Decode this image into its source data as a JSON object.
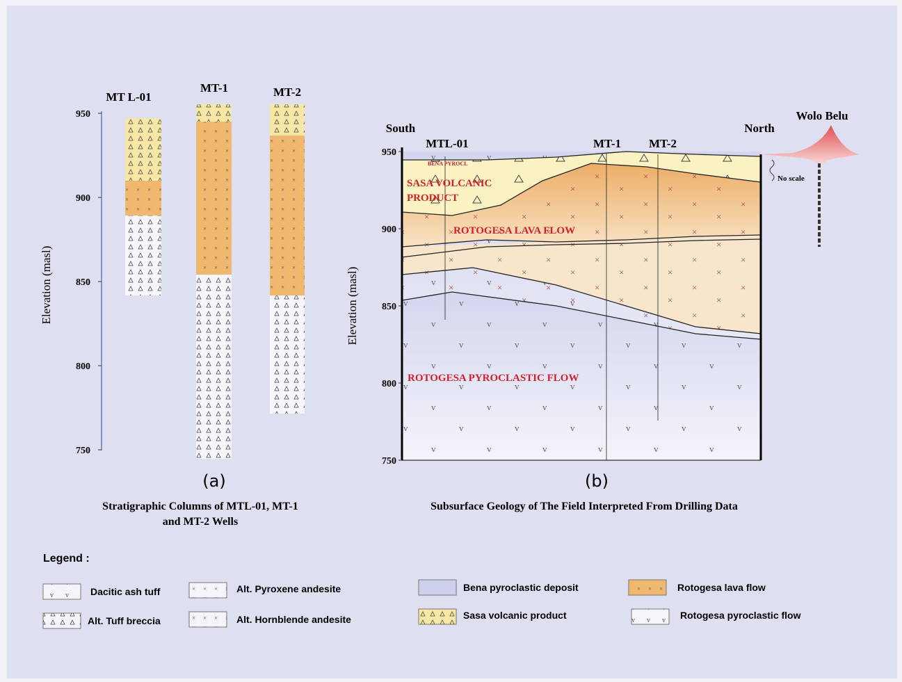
{
  "panel_a": {
    "wells": [
      "MT L-01",
      "MT-1",
      "MT-2"
    ],
    "y_label": "Elevation (masl)",
    "yticks": [
      950,
      900,
      850,
      800,
      750
    ],
    "ylim": [
      750,
      950
    ],
    "tag": "(a)",
    "caption_lines": [
      "Stratigraphic Columns of MTL-01, MT-1",
      "and MT-2 Wells"
    ]
  },
  "panel_b": {
    "south": "South",
    "north": "North",
    "volcano": "Wolo Belu",
    "wells": [
      "MTL-01",
      "MT-1",
      "MT-2"
    ],
    "y_label": "Elevation (masl)",
    "yticks": [
      950,
      900,
      850,
      800,
      750
    ],
    "ylim": [
      750,
      950
    ],
    "no_scale": "No scale",
    "units": [
      "BENA PYROCL",
      "SASA VOLCANIC",
      "PRODUCT",
      "ROTOGESA LAVA FLOW",
      "ROTOGESA PYROCLASTIC FLOW"
    ],
    "tag": "(b)",
    "caption": "Subsurface Geology of The Field Interpreted From Drilling Data"
  },
  "legend": {
    "title": "Legend :",
    "items": [
      "Dacitic ash tuff",
      "Alt. Pyroxene andesite",
      "Alt. Tuff breccia",
      "Alt. Hornblende andesite",
      "Bena pyroclastic deposit",
      "Rotogesa lava flow",
      "Sasa volcanic product",
      "Rotogesa pyroclastic flow"
    ]
  }
}
